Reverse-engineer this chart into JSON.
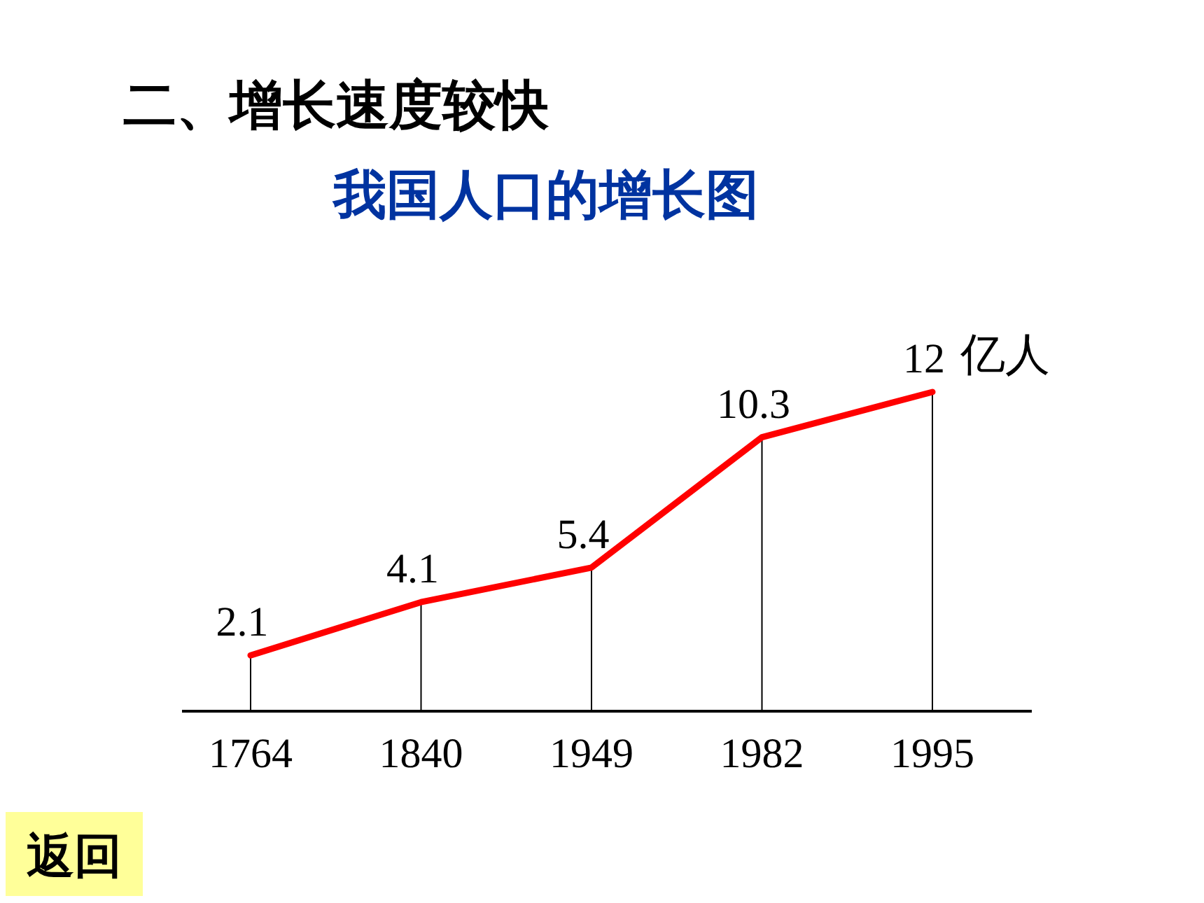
{
  "chart_data": {
    "type": "line",
    "title": "二、增长速度较快",
    "subtitle": "我国人口的增长图",
    "ylabel": "亿人",
    "categories": [
      "1764",
      "1840",
      "1949",
      "1982",
      "1995"
    ],
    "series": [
      {
        "color": "#ff0000",
        "values": [
          2.1,
          4.1,
          5.4,
          10.3,
          12
        ]
      }
    ],
    "data_labels": true,
    "marker": "none",
    "line_style": "solid",
    "grid": "x",
    "annotations": [
      "返回"
    ]
  }
}
